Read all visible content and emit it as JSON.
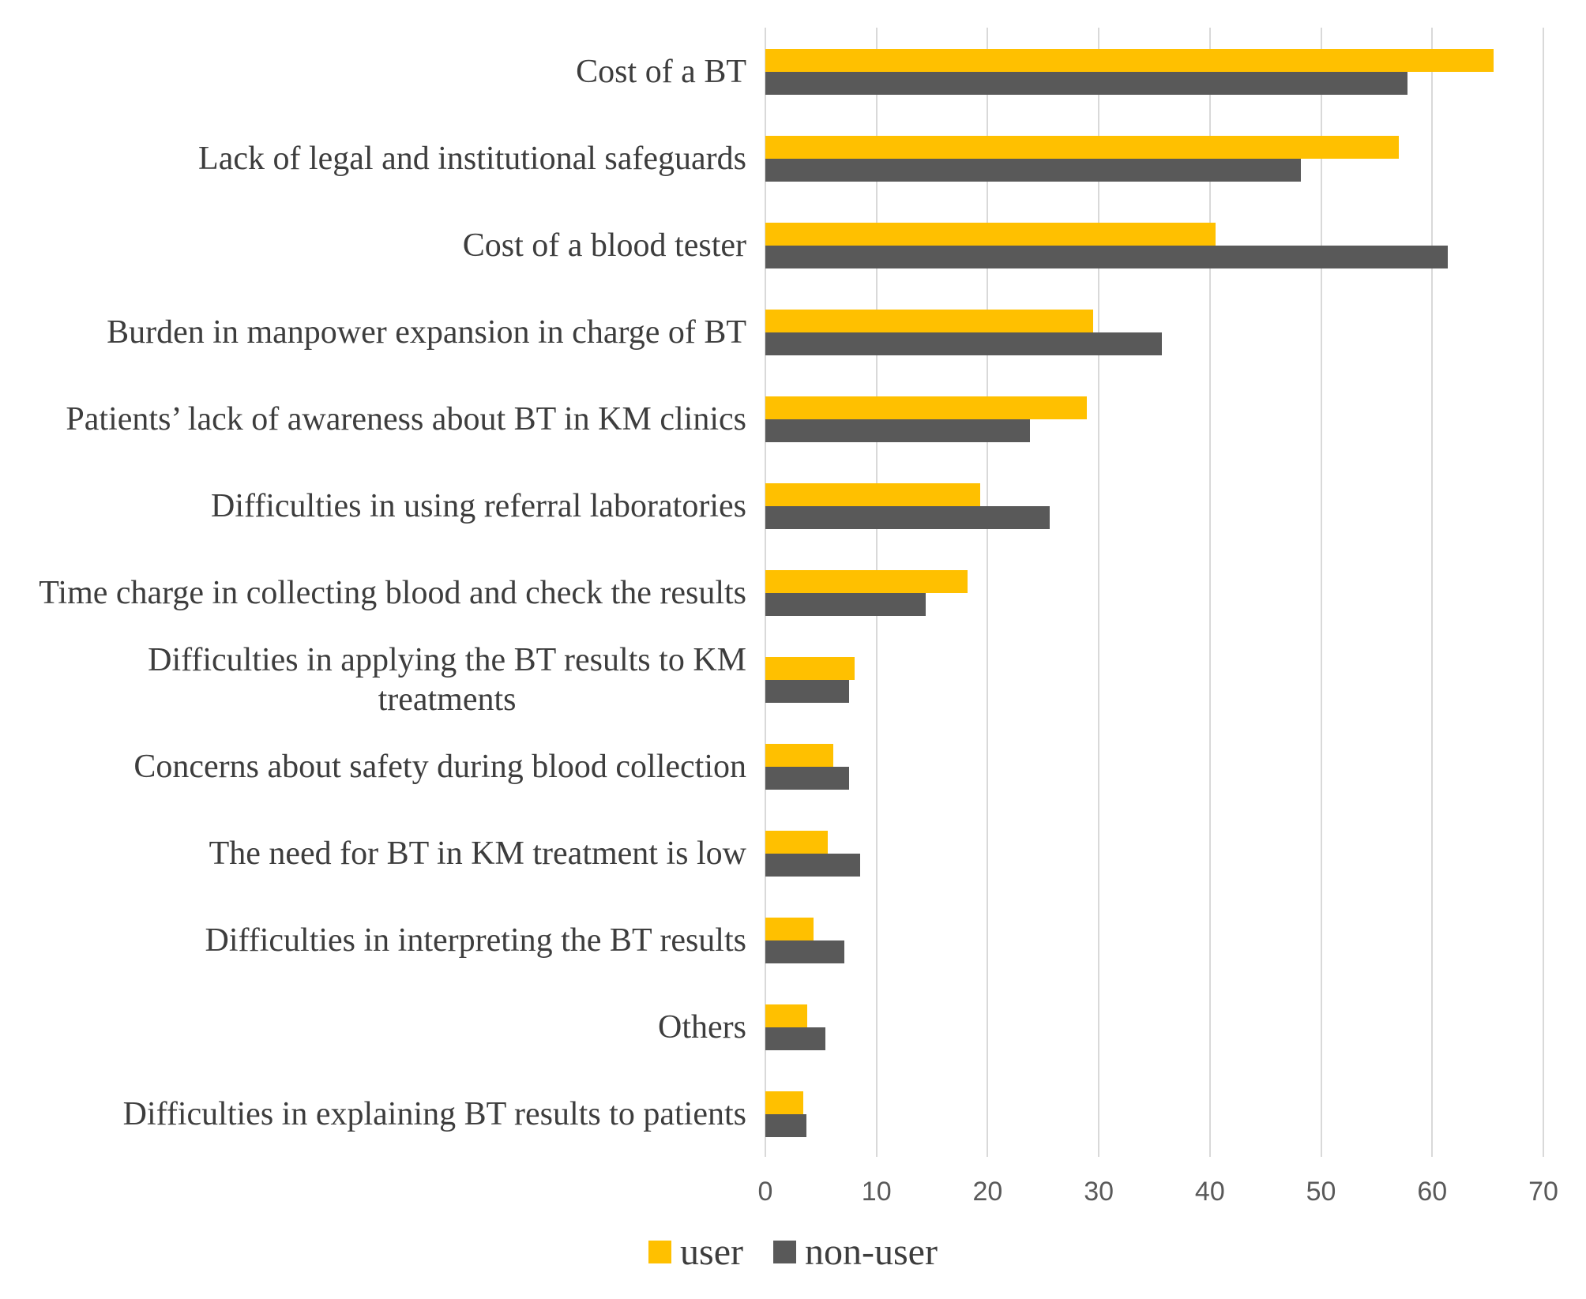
{
  "chart_data": {
    "type": "bar",
    "orientation": "horizontal",
    "title": "",
    "xlabel": "",
    "ylabel": "",
    "xlim": [
      0,
      70
    ],
    "x_ticks": [
      0,
      10,
      20,
      30,
      40,
      50,
      60,
      70
    ],
    "grid": "vertical-only",
    "legend_position": "bottom-center",
    "categories": [
      "Cost of a BT",
      "Lack of legal and institutional safeguards",
      "Cost of a blood tester",
      "Burden in manpower expansion in charge of BT",
      "Patients’ lack of awareness about BT in KM clinics",
      "Difficulties in using referral laboratories",
      "Time charge in collecting blood and check the results",
      "Difficulties in applying the BT results to KM\ntreatments",
      "Concerns about safety during blood collection",
      "The need for BT in KM treatment is low",
      "Difficulties in interpreting the BT results",
      "Others",
      "Difficulties in explaining BT results to patients"
    ],
    "series": [
      {
        "name": "user",
        "color": "#FFC000",
        "values": [
          65.5,
          57.0,
          40.5,
          29.5,
          28.9,
          19.3,
          18.2,
          8.0,
          6.1,
          5.6,
          4.3,
          3.8,
          3.4
        ]
      },
      {
        "name": "non-user",
        "color": "#595959",
        "values": [
          57.8,
          48.2,
          61.4,
          35.7,
          23.8,
          25.6,
          14.4,
          7.5,
          7.5,
          8.5,
          7.1,
          5.4,
          3.7
        ]
      }
    ],
    "gridline_color": "#d9d9d9",
    "tick_label_color": "#595959",
    "category_label_color": "#3d3d3d"
  }
}
